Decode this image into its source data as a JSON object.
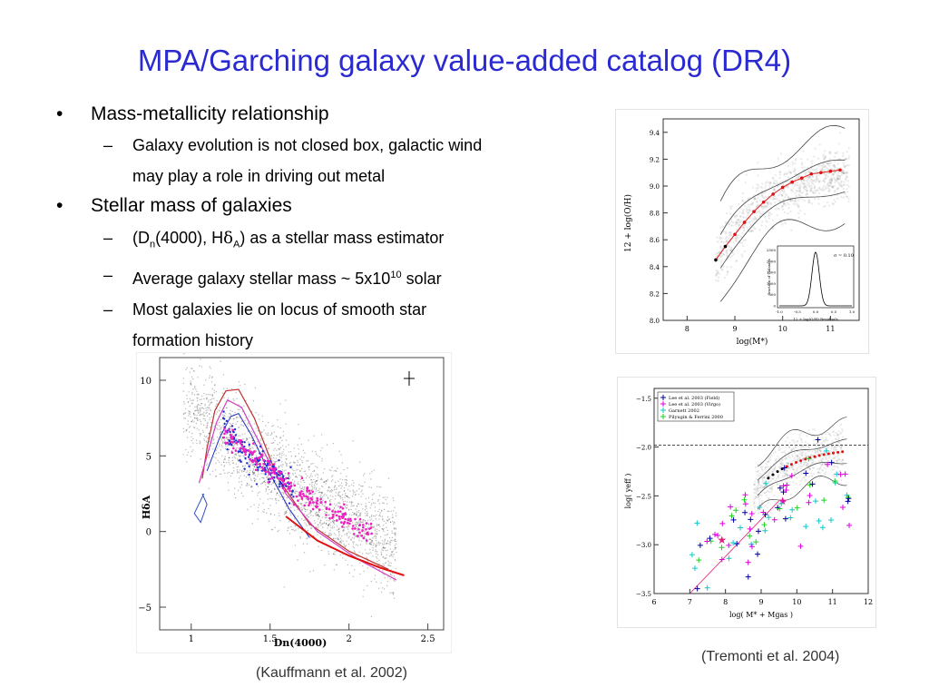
{
  "slide": {
    "title": "MPA/Garching galaxy value-added catalog (DR4)",
    "bullets": [
      {
        "text": "Mass-metallicity relationship",
        "sub": [
          "Galaxy evolution is not closed box, galactic wind",
          "may play a role in driving out metal"
        ]
      },
      {
        "text": "Stellar mass of galaxies",
        "sub_b": [
          "Average galaxy stellar mass ~ 5x10",
          "10",
          " solar"
        ],
        "sub_c": [
          "Most galaxies lie on locus of smooth star",
          "formation history"
        ],
        "sub_a": {
          "prefix": "(D",
          "sub_n": "n",
          "mid": "(4000), H",
          "delta": "δ",
          "sub_a": "A",
          "suffix": ") as a stellar mass estimator"
        }
      }
    ],
    "bullet_marker": "•",
    "dash_marker": "–",
    "captions": {
      "tremonti": "(Tremonti et al. 2004)",
      "kauffmann": "(Kauffmann et al. 2002)"
    }
  },
  "chart_data": [
    {
      "type": "scatter",
      "xlabel": "log(M*)",
      "ylabel": "12 + log(O/H)",
      "xlim": [
        7.5,
        11.6
      ],
      "ylim": [
        8.0,
        9.5
      ],
      "x_ticks": [
        "8",
        "9",
        "10",
        "11"
      ],
      "y_ticks": [
        "8.0",
        "8.2",
        "8.4",
        "8.6",
        "8.8",
        "9.0",
        "9.2",
        "9.4"
      ],
      "median_x": [
        8.6,
        8.8,
        9.0,
        9.2,
        9.4,
        9.6,
        9.8,
        10.0,
        10.2,
        10.4,
        10.6,
        10.8,
        11.0,
        11.2
      ],
      "median_y": [
        8.45,
        8.55,
        8.64,
        8.73,
        8.81,
        8.88,
        8.94,
        8.99,
        9.03,
        9.06,
        9.09,
        9.1,
        9.11,
        9.12
      ],
      "inset": {
        "annotation": "σ = 0.10",
        "ylabel": "fraction of Galaxies",
        "xlabel": "12 + log(O/H) Residuals",
        "x_ticks": [
          "-1.0",
          "-0.5",
          "0.0",
          "0.5",
          "1.0"
        ],
        "y_ticks": [
          "0",
          "500",
          "1000",
          "1500",
          "2000",
          "2500"
        ]
      }
    },
    {
      "type": "scatter",
      "xlabel": "Dn(4000)",
      "ylabel": "HδA",
      "xlim": [
        0.8,
        2.6
      ],
      "ylim": [
        -6.5,
        11.5
      ],
      "x_ticks": [
        "1",
        "1.5",
        "2",
        "2.5"
      ],
      "y_ticks": [
        "10",
        "5",
        "0",
        "−5"
      ]
    },
    {
      "type": "scatter",
      "xlabel": "log( M* + Mgas )",
      "ylabel": "log( yeff )",
      "xlim": [
        6,
        12
      ],
      "ylim": [
        -3.5,
        -1.4
      ],
      "x_ticks": [
        "6",
        "7",
        "8",
        "9",
        "10",
        "11",
        "12"
      ],
      "y_ticks": [
        "−1.5",
        "−2.0",
        "−2.5",
        "−3.0",
        "−3.5"
      ],
      "legend": [
        "Lee et al. 2003 (Field)",
        "Lee et al. 2003 (Virgo)",
        "Garnett 2002",
        "Pilyugin & Ferrini 2000"
      ],
      "legend_colors": [
        "#0000a0",
        "#e000e0",
        "#10c8c8",
        "#20d020"
      ],
      "reference_line_y": -1.98
    }
  ]
}
